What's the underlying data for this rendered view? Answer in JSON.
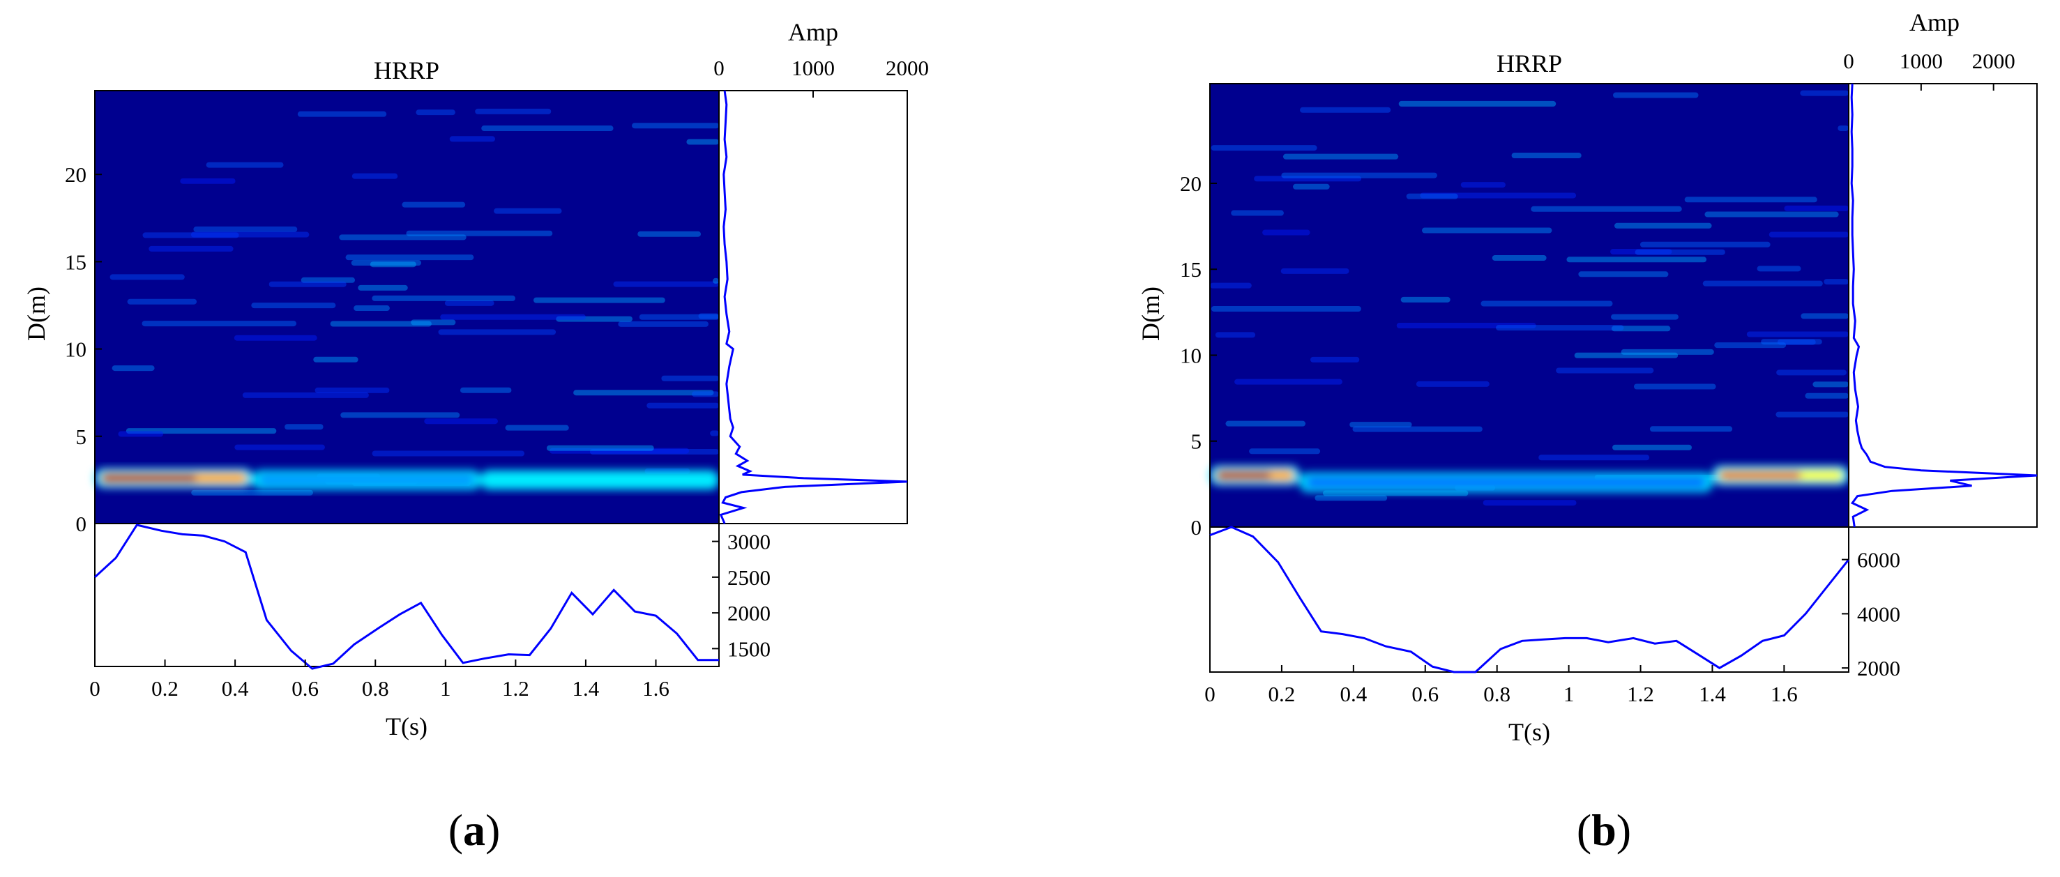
{
  "chart_data": [
    {
      "panel": "a",
      "panel_label": {
        "open": "(",
        "letter": "a",
        "close": ")"
      },
      "type": "heatmap",
      "title": "HRRP",
      "xlabel": "T(s)",
      "ylabel": "D(m)",
      "xlim": [
        0,
        1.78
      ],
      "ylim": [
        0,
        24.8
      ],
      "xticks": [
        0,
        0.2,
        0.4,
        0.6,
        0.8,
        1,
        1.2,
        1.4,
        1.6
      ],
      "yticks": [
        0,
        5,
        10,
        15,
        20
      ],
      "colormap": [
        "#00007f",
        "#0000ff",
        "#00ffff",
        "#ffff00",
        "#ff0000",
        "#7f0000"
      ],
      "hotspots": [
        {
          "range": [
            2.0,
            2.9
          ],
          "d": 2.6,
          "t": [
            0.0,
            0.45
          ],
          "intensity": 0.95
        },
        {
          "range": [
            0.45,
            1.1
          ],
          "d": 2.5,
          "t": [
            0.45,
            1.1
          ],
          "intensity": 0.45
        },
        {
          "range": [
            1.1,
            1.78
          ],
          "d": 2.5,
          "t": [
            1.1,
            1.78
          ],
          "intensity": 0.55
        }
      ],
      "side_profile": {
        "label": "Amp",
        "xlim": [
          0,
          2000
        ],
        "xticks": [
          0,
          1000,
          2000
        ],
        "d": [
          0,
          0.5,
          0.9,
          1.2,
          1.5,
          1.8,
          2.1,
          2.4,
          2.6,
          2.8,
          3.0,
          3.3,
          3.6,
          4.0,
          4.4,
          5.0,
          5.5,
          6,
          7,
          8,
          9,
          10,
          10.3,
          11,
          12,
          13,
          14,
          15,
          16,
          17,
          18,
          19,
          20,
          21,
          22,
          23,
          24,
          24.8
        ],
        "amp": [
          60,
          20,
          260,
          40,
          70,
          240,
          700,
          2000,
          900,
          250,
          330,
          200,
          300,
          180,
          220,
          120,
          150,
          120,
          100,
          80,
          110,
          150,
          80,
          110,
          80,
          60,
          90,
          80,
          60,
          50,
          70,
          60,
          50,
          80,
          60,
          70,
          80,
          60
        ]
      },
      "bottom_profile": {
        "yticks": [
          1500,
          2000,
          2500,
          3000
        ],
        "ylim": [
          1250,
          3250
        ],
        "t": [
          0,
          0.06,
          0.12,
          0.19,
          0.25,
          0.31,
          0.37,
          0.43,
          0.49,
          0.56,
          0.62,
          0.68,
          0.74,
          0.81,
          0.87,
          0.93,
          0.99,
          1.05,
          1.11,
          1.18,
          1.24,
          1.3,
          1.36,
          1.42,
          1.48,
          1.54,
          1.6,
          1.66,
          1.72,
          1.78
        ],
        "amp": [
          2500,
          2770,
          3230,
          3150,
          3100,
          3080,
          3000,
          2850,
          1900,
          1470,
          1220,
          1290,
          1560,
          1790,
          1980,
          2140,
          1690,
          1300,
          1360,
          1420,
          1410,
          1780,
          2280,
          1980,
          2320,
          2020,
          1960,
          1710,
          1340,
          1340
        ]
      }
    },
    {
      "panel": "b",
      "panel_label": {
        "open": "(",
        "letter": "b",
        "close": ")"
      },
      "type": "heatmap",
      "title": "HRRP",
      "xlabel": "T(s)",
      "ylabel": "D(m)",
      "xlim": [
        0,
        1.78
      ],
      "ylim": [
        0,
        25.8
      ],
      "xticks": [
        0,
        0.2,
        0.4,
        0.6,
        0.8,
        1,
        1.2,
        1.4,
        1.6
      ],
      "yticks": [
        0,
        5,
        10,
        15,
        20
      ],
      "colormap": [
        "#00007f",
        "#0000ff",
        "#00ffff",
        "#ffff00",
        "#ff0000",
        "#7f0000"
      ],
      "hotspots": [
        {
          "d": 3.0,
          "t": [
            0.0,
            0.25
          ],
          "intensity": 0.95
        },
        {
          "d": 2.6,
          "t": [
            0.25,
            1.4
          ],
          "intensity": 0.4
        },
        {
          "d": 3.0,
          "t": [
            1.4,
            1.78
          ],
          "intensity": 0.85
        }
      ],
      "side_profile": {
        "label": "Amp",
        "xlim": [
          0,
          2600
        ],
        "xticks": [
          0,
          1000,
          2000
        ],
        "d": [
          0,
          0.6,
          1.0,
          1.4,
          1.8,
          2.1,
          2.4,
          2.7,
          3.0,
          3.3,
          3.5,
          3.8,
          4.2,
          4.6,
          5.0,
          5.6,
          6.2,
          7,
          8,
          9,
          10,
          10.5,
          11,
          12,
          13,
          14,
          15,
          16,
          17,
          18,
          19,
          20,
          21,
          22,
          23,
          24,
          25,
          25.8
        ],
        "amp": [
          80,
          60,
          250,
          50,
          120,
          600,
          1700,
          1400,
          2600,
          1000,
          500,
          300,
          250,
          180,
          150,
          120,
          100,
          130,
          90,
          70,
          110,
          140,
          70,
          90,
          60,
          60,
          70,
          60,
          50,
          50,
          60,
          40,
          50,
          50,
          40,
          50,
          40,
          50
        ]
      },
      "bottom_profile": {
        "yticks": [
          2000,
          4000,
          6000
        ],
        "ylim": [
          1850,
          7200
        ],
        "t": [
          0,
          0.06,
          0.12,
          0.19,
          0.25,
          0.31,
          0.37,
          0.43,
          0.49,
          0.56,
          0.62,
          0.68,
          0.74,
          0.81,
          0.87,
          0.93,
          0.99,
          1.05,
          1.11,
          1.18,
          1.24,
          1.3,
          1.36,
          1.42,
          1.48,
          1.54,
          1.6,
          1.66,
          1.72,
          1.78
        ],
        "amp": [
          6900,
          7200,
          6850,
          5900,
          4600,
          3350,
          3250,
          3100,
          2800,
          2600,
          2050,
          1850,
          1850,
          2700,
          3000,
          3050,
          3100,
          3100,
          2950,
          3100,
          2900,
          3000,
          2500,
          2000,
          2450,
          3000,
          3200,
          4000,
          5000,
          6000
        ]
      }
    }
  ]
}
